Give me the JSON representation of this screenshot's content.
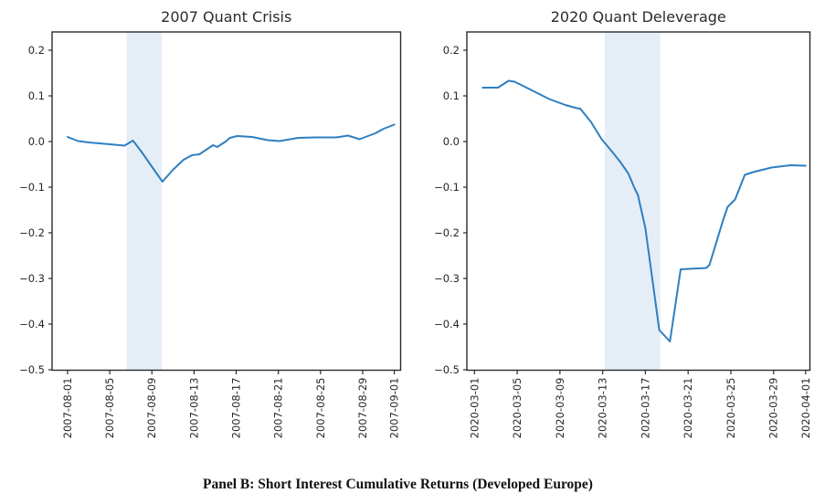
{
  "figure": {
    "caption": "Panel B: Short Interest Cumulative Returns (Developed Europe)",
    "background_color": "#ffffff",
    "line_color": "#2f7fc0",
    "shade_color": "#e5eef7",
    "axis_color": "#2a2a2a",
    "text_color": "#262626",
    "title_color": "#2b2b2b"
  },
  "chart_data": [
    {
      "type": "line",
      "title": "2007 Quant Crisis",
      "xlabel": "",
      "ylabel": "",
      "x_unit": "days since 2007-08-01",
      "xlim": [
        -1.47,
        31.6
      ],
      "ylim": [
        -0.501,
        0.24
      ],
      "grid": false,
      "legend": "none",
      "y_ticks": [
        0.2,
        0.1,
        0.0,
        -0.1,
        -0.2,
        -0.3,
        -0.4,
        -0.5
      ],
      "x_ticks": [
        {
          "offset": 0,
          "label": "2007-08-01"
        },
        {
          "offset": 4,
          "label": "2007-08-05"
        },
        {
          "offset": 8,
          "label": "2007-08-09"
        },
        {
          "offset": 12,
          "label": "2007-08-13"
        },
        {
          "offset": 16,
          "label": "2007-08-17"
        },
        {
          "offset": 20,
          "label": "2007-08-21"
        },
        {
          "offset": 24,
          "label": "2007-08-25"
        },
        {
          "offset": 28,
          "label": "2007-08-29"
        },
        {
          "offset": 31,
          "label": "2007-09-01"
        }
      ],
      "shaded_span": {
        "x0": 5.6,
        "x1": 8.93
      },
      "points": [
        [
          0,
          0.01
        ],
        [
          1,
          0.001
        ],
        [
          2,
          -0.002
        ],
        [
          3,
          -0.004
        ],
        [
          4,
          -0.006
        ],
        [
          5.4,
          -0.009
        ],
        [
          6.2,
          0.002
        ],
        [
          7,
          -0.022
        ],
        [
          8,
          -0.055
        ],
        [
          9,
          -0.088
        ],
        [
          10,
          -0.062
        ],
        [
          11,
          -0.04
        ],
        [
          11.8,
          -0.03
        ],
        [
          12.5,
          -0.028
        ],
        [
          13.8,
          -0.008
        ],
        [
          14.2,
          -0.012
        ],
        [
          15,
          0.0
        ],
        [
          15.4,
          0.008
        ],
        [
          16.1,
          0.012
        ],
        [
          17.5,
          0.01
        ],
        [
          19,
          0.003
        ],
        [
          20.1,
          0.001
        ],
        [
          21.9,
          0.008
        ],
        [
          23.5,
          0.009
        ],
        [
          25.5,
          0.009
        ],
        [
          26.6,
          0.013
        ],
        [
          27.7,
          0.005
        ],
        [
          29.2,
          0.018
        ],
        [
          30,
          0.028
        ],
        [
          31,
          0.037
        ]
      ]
    },
    {
      "type": "line",
      "title": "2020 Quant Deleverage",
      "xlabel": "",
      "ylabel": "",
      "x_unit": "days since 2020-03-01",
      "xlim": [
        -0.71,
        31.4
      ],
      "ylim": [
        -0.501,
        0.24
      ],
      "grid": false,
      "legend": "none",
      "y_ticks": [
        0.2,
        0.1,
        0.0,
        -0.1,
        -0.2,
        -0.3,
        -0.4,
        -0.5
      ],
      "x_ticks": [
        {
          "offset": 0,
          "label": "2020-03-01"
        },
        {
          "offset": 4,
          "label": "2020-03-05"
        },
        {
          "offset": 8,
          "label": "2020-03-09"
        },
        {
          "offset": 12,
          "label": "2020-03-13"
        },
        {
          "offset": 16,
          "label": "2020-03-17"
        },
        {
          "offset": 20,
          "label": "2020-03-21"
        },
        {
          "offset": 24,
          "label": "2020-03-25"
        },
        {
          "offset": 28,
          "label": "2020-03-29"
        },
        {
          "offset": 31,
          "label": "2020-04-01"
        }
      ],
      "shaded_span": {
        "x0": 12.2,
        "x1": 17.4
      },
      "points": [
        [
          0.77,
          0.118
        ],
        [
          2.2,
          0.118
        ],
        [
          3.2,
          0.133
        ],
        [
          3.76,
          0.131
        ],
        [
          5.3,
          0.113
        ],
        [
          7.0,
          0.093
        ],
        [
          8.5,
          0.08
        ],
        [
          9.6,
          0.073
        ],
        [
          9.9,
          0.072
        ],
        [
          10.9,
          0.043
        ],
        [
          11.9,
          0.005
        ],
        [
          12.7,
          -0.017
        ],
        [
          13.6,
          -0.043
        ],
        [
          14.4,
          -0.07
        ],
        [
          15.0,
          -0.103
        ],
        [
          15.3,
          -0.117
        ],
        [
          16.0,
          -0.19
        ],
        [
          17.3,
          -0.413
        ],
        [
          18.3,
          -0.438
        ],
        [
          19.3,
          -0.28
        ],
        [
          21.7,
          -0.277
        ],
        [
          22.0,
          -0.27
        ],
        [
          23.3,
          -0.17
        ],
        [
          23.7,
          -0.143
        ],
        [
          24.4,
          -0.127
        ],
        [
          25.3,
          -0.073
        ],
        [
          26.1,
          -0.067
        ],
        [
          27.8,
          -0.057
        ],
        [
          29.6,
          -0.052
        ],
        [
          31.0,
          -0.053
        ]
      ]
    }
  ]
}
